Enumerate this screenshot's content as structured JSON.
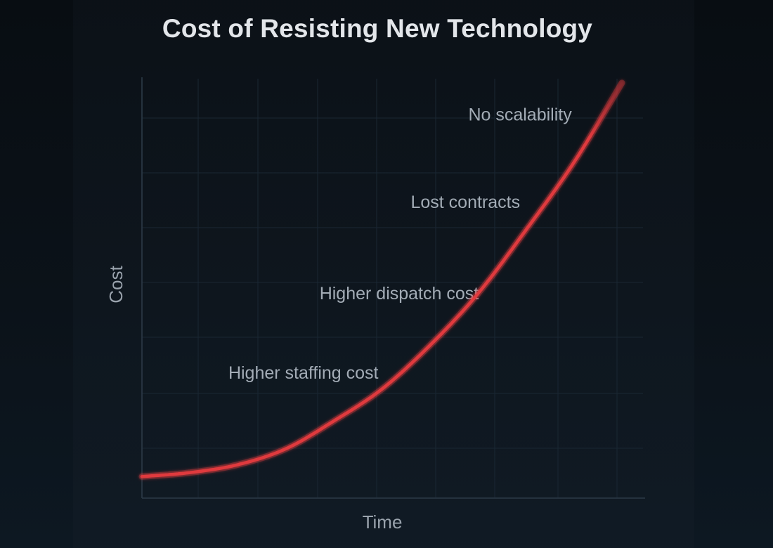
{
  "chart_data": {
    "type": "line",
    "title": "Cost of Resisting New Technology",
    "xlabel": "Time",
    "ylabel": "Cost",
    "grid": true,
    "axis_ticks": false,
    "line_color": "#e03a3e",
    "background_color": "#0b1118",
    "x": [
      0,
      0.1,
      0.2,
      0.3,
      0.4,
      0.5,
      0.6,
      0.7,
      0.8,
      0.9,
      1.0
    ],
    "series": [
      {
        "values": [
          0.01,
          0.02,
          0.04,
          0.08,
          0.15,
          0.23,
          0.34,
          0.47,
          0.63,
          0.8,
          1.0
        ]
      }
    ],
    "ylim": [
      0,
      1
    ],
    "xlim": [
      0,
      1
    ],
    "annotations": [
      {
        "text": "No scalability",
        "x": 0.68,
        "y": 0.92
      },
      {
        "text": "Lost contracts",
        "x": 0.56,
        "y": 0.7
      },
      {
        "text": "Higher dispatch cost",
        "x": 0.37,
        "y": 0.47
      },
      {
        "text": "Higher staffing cost",
        "x": 0.18,
        "y": 0.27
      }
    ]
  }
}
